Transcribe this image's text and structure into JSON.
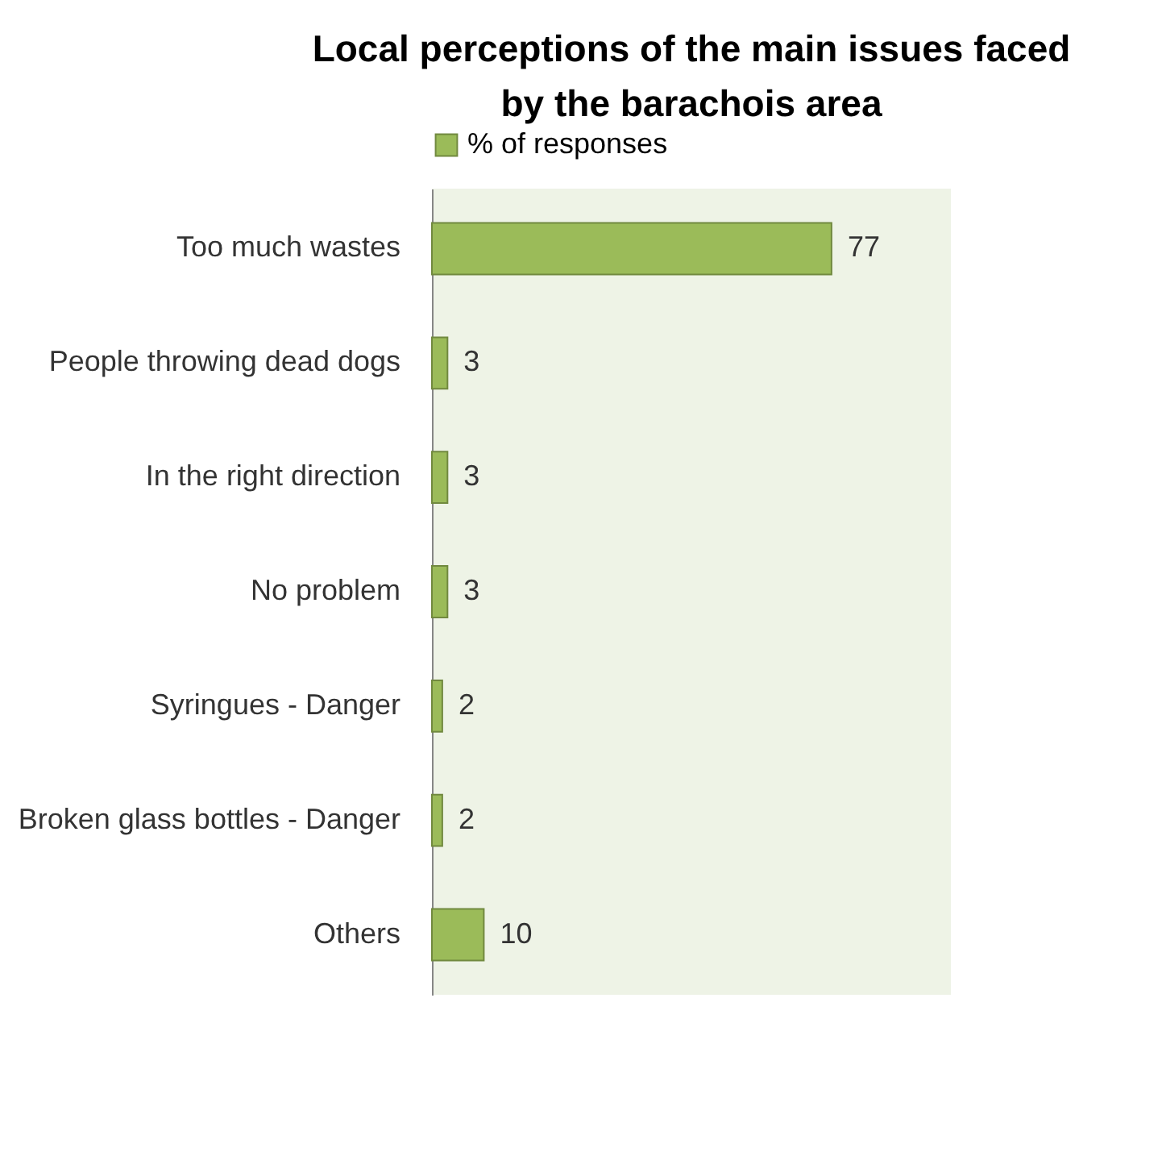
{
  "chart_data": {
    "type": "bar",
    "orientation": "horizontal",
    "title": "Local perceptions of the main issues faced by the barachois area",
    "categories": [
      "Too much wastes",
      "People throwing dead dogs",
      "In the right direction",
      "No problem",
      "Syringues - Danger",
      "Broken glass bottles - Danger",
      "Others"
    ],
    "series": [
      {
        "name": "% of responses",
        "color": "#9bbb59",
        "values": [
          77,
          3,
          3,
          3,
          2,
          2,
          10
        ]
      }
    ],
    "xlim": [
      0,
      100
    ],
    "data_labels": true,
    "grid": false,
    "legend": "top",
    "tick_labels": "y"
  }
}
